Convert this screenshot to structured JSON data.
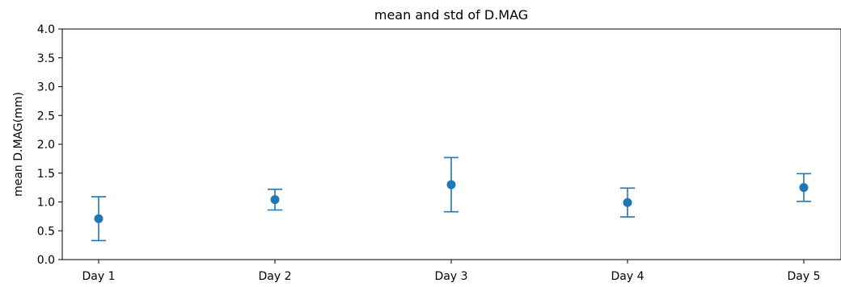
{
  "chart_data": {
    "type": "scatter",
    "title": "mean and std of D.MAG",
    "xlabel": "",
    "ylabel": "mean D.MAG(mm)",
    "categories": [
      "Day 1",
      "Day 2",
      "Day 3",
      "Day 4",
      "Day 5"
    ],
    "series": [
      {
        "values": [
          0.71,
          1.04,
          1.3,
          0.99,
          1.25
        ],
        "std": [
          0.38,
          0.18,
          0.47,
          0.25,
          0.24
        ]
      }
    ],
    "ylim": [
      0.0,
      4.0
    ],
    "yticks": [
      "0.0",
      "0.5",
      "1.0",
      "1.5",
      "2.0",
      "2.5",
      "3.0",
      "3.5",
      "4.0"
    ],
    "grid": false,
    "color": "#1f77b4"
  }
}
